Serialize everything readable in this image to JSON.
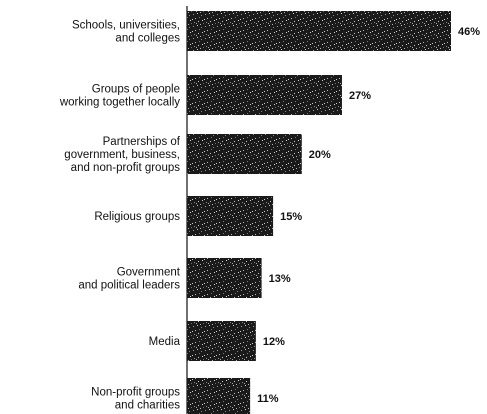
{
  "chart_data": {
    "type": "bar",
    "orientation": "horizontal",
    "categories": [
      [
        "Schools, universities,",
        "and colleges"
      ],
      [
        "Groups of people",
        "working together locally"
      ],
      [
        "Partnerships of",
        "government, business,",
        "and non-profit groups"
      ],
      [
        "Religious groups"
      ],
      [
        "Government",
        "and political leaders"
      ],
      [
        "Media"
      ],
      [
        "Non-profit groups",
        "and charities"
      ]
    ],
    "values": [
      46,
      27,
      20,
      15,
      13,
      12,
      11
    ],
    "value_labels": [
      "46%",
      "27%",
      "20%",
      "15%",
      "13%",
      "12%",
      "11%"
    ],
    "xlim": [
      0,
      46
    ],
    "bar_color": "#1a1a1a",
    "grid": false,
    "legend": "none"
  }
}
